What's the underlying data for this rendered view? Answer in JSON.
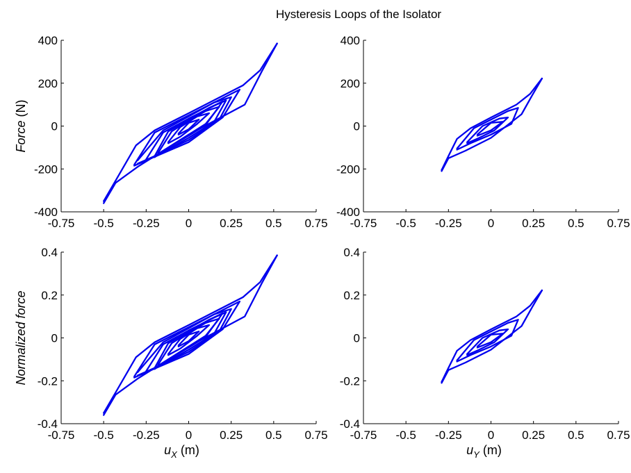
{
  "figure": {
    "title": "Hysteresis Loops of the Isolator"
  },
  "chart_data": [
    {
      "type": "line",
      "panel": "top-left",
      "title": "",
      "xlabel": "",
      "ylabel": {
        "italic": "Force",
        "normal": " (N)"
      },
      "xlim": [
        -0.75,
        0.75
      ],
      "ylim": [
        -400,
        400
      ],
      "xticks": [
        "-0.75",
        "-0.5",
        "-0.25",
        "0",
        "0.25",
        "0.5",
        "0.75"
      ],
      "yticks": [
        "-400",
        "-200",
        "0",
        "200",
        "400"
      ],
      "color": "#0000ee",
      "series": [
        {
          "x": [
            -0.5,
            -0.43,
            -0.3,
            0.0,
            0.33,
            0.43,
            0.52
          ],
          "y": [
            -360,
            -265,
            -190,
            -40,
            100,
            255,
            385
          ]
        },
        {
          "x": [
            0.52,
            0.42,
            0.32,
            0.0,
            -0.2,
            -0.31,
            -0.43,
            -0.5
          ],
          "y": [
            385,
            260,
            190,
            60,
            -20,
            -90,
            -255,
            -350
          ]
        },
        {
          "x": [
            -0.32,
            -0.22,
            0.0,
            0.2,
            0.3,
            0.2,
            0.0,
            -0.2,
            -0.32
          ],
          "y": [
            -185,
            -150,
            -75,
            40,
            170,
            130,
            50,
            -30,
            -180
          ]
        },
        {
          "x": [
            -0.25,
            -0.15,
            0.0,
            0.15,
            0.22,
            0.15,
            0.0,
            -0.15,
            -0.25
          ],
          "y": [
            -160,
            -120,
            -55,
            20,
            120,
            95,
            35,
            -30,
            -155
          ]
        },
        {
          "x": [
            -0.18,
            -0.1,
            0.0,
            0.1,
            0.18,
            0.1,
            0.0,
            -0.1,
            -0.18
          ],
          "y": [
            -130,
            -90,
            -40,
            10,
            90,
            70,
            25,
            -25,
            -125
          ]
        },
        {
          "x": [
            -0.12,
            -0.05,
            0.05,
            0.12,
            0.05,
            -0.05,
            -0.12
          ],
          "y": [
            -80,
            -50,
            10,
            60,
            45,
            -5,
            -75
          ]
        },
        {
          "x": [
            -0.06,
            0.0,
            0.06,
            0.0,
            -0.06
          ],
          "y": [
            -40,
            -15,
            30,
            15,
            -35
          ]
        },
        {
          "x": [
            -0.3,
            -0.2,
            0.0,
            0.18,
            0.25,
            0.15,
            0.0,
            -0.15,
            -0.3
          ],
          "y": [
            -175,
            -140,
            -65,
            30,
            135,
            110,
            45,
            -20,
            -160
          ]
        },
        {
          "x": [
            -0.2,
            -0.12,
            0.0,
            0.1,
            0.2,
            0.12,
            0.0,
            -0.12,
            -0.2
          ],
          "y": [
            -145,
            -100,
            -45,
            5,
            115,
            85,
            30,
            -25,
            -140
          ]
        }
      ]
    },
    {
      "type": "line",
      "panel": "top-right",
      "title": "",
      "xlabel": "",
      "ylabel": "",
      "xlim": [
        -0.75,
        0.75
      ],
      "ylim": [
        -400,
        400
      ],
      "xticks": [
        "-0.75",
        "-0.5",
        "-0.25",
        "0",
        "0.25",
        "0.5",
        "0.75"
      ],
      "yticks": [
        "-400",
        "-200",
        "0",
        "200",
        "400"
      ],
      "color": "#0000ee",
      "series": [
        {
          "x": [
            -0.29,
            -0.25,
            -0.15,
            0.0,
            0.18,
            0.24,
            0.3
          ],
          "y": [
            -210,
            -150,
            -115,
            -55,
            55,
            140,
            222
          ]
        },
        {
          "x": [
            0.3,
            0.23,
            0.15,
            0.0,
            -0.12,
            -0.2,
            -0.25,
            -0.29
          ],
          "y": [
            222,
            150,
            100,
            40,
            -10,
            -60,
            -140,
            -205
          ]
        },
        {
          "x": [
            -0.2,
            -0.12,
            0.0,
            0.12,
            0.16,
            0.1,
            0.0,
            -0.1,
            -0.2
          ],
          "y": [
            -110,
            -80,
            -40,
            10,
            85,
            70,
            30,
            -10,
            -105
          ]
        },
        {
          "x": [
            -0.14,
            -0.07,
            0.02,
            0.1,
            0.05,
            -0.05,
            -0.14
          ],
          "y": [
            -80,
            -55,
            -20,
            40,
            35,
            0,
            -75
          ]
        },
        {
          "x": [
            -0.08,
            0.0,
            0.07,
            0.0,
            -0.08
          ],
          "y": [
            -45,
            -20,
            20,
            15,
            -40
          ]
        }
      ]
    },
    {
      "type": "line",
      "panel": "bottom-left",
      "title": "",
      "xlabel": {
        "main": "u",
        "sub": "X",
        "unit": " (m)"
      },
      "ylabel": {
        "italic": "Normalized force",
        "normal": ""
      },
      "xlim": [
        -0.75,
        0.75
      ],
      "ylim": [
        -0.4,
        0.4
      ],
      "xticks": [
        "-0.75",
        "-0.5",
        "-0.25",
        "0",
        "0.25",
        "0.5",
        "0.75"
      ],
      "yticks": [
        "-0.4",
        "-0.2",
        "0",
        "0.2",
        "0.4"
      ],
      "color": "#0000ee",
      "series": [
        {
          "x": [
            -0.5,
            -0.43,
            -0.3,
            0.0,
            0.33,
            0.43,
            0.52
          ],
          "y": [
            -0.36,
            -0.265,
            -0.19,
            -0.04,
            0.1,
            0.255,
            0.385
          ]
        },
        {
          "x": [
            0.52,
            0.42,
            0.32,
            0.0,
            -0.2,
            -0.31,
            -0.43,
            -0.5
          ],
          "y": [
            0.385,
            0.26,
            0.19,
            0.06,
            -0.02,
            -0.09,
            -0.255,
            -0.35
          ]
        },
        {
          "x": [
            -0.32,
            -0.22,
            0.0,
            0.2,
            0.3,
            0.2,
            0.0,
            -0.2,
            -0.32
          ],
          "y": [
            -0.185,
            -0.15,
            -0.075,
            0.04,
            0.17,
            0.13,
            0.05,
            -0.03,
            -0.18
          ]
        },
        {
          "x": [
            -0.25,
            -0.15,
            0.0,
            0.15,
            0.22,
            0.15,
            0.0,
            -0.15,
            -0.25
          ],
          "y": [
            -0.16,
            -0.12,
            -0.055,
            0.02,
            0.12,
            0.095,
            0.035,
            -0.03,
            -0.155
          ]
        },
        {
          "x": [
            -0.18,
            -0.1,
            0.0,
            0.1,
            0.18,
            0.1,
            0.0,
            -0.1,
            -0.18
          ],
          "y": [
            -0.13,
            -0.09,
            -0.04,
            0.01,
            0.09,
            0.07,
            0.025,
            -0.025,
            -0.125
          ]
        },
        {
          "x": [
            -0.12,
            -0.05,
            0.05,
            0.12,
            0.05,
            -0.05,
            -0.12
          ],
          "y": [
            -0.08,
            -0.05,
            0.01,
            0.06,
            0.045,
            -0.005,
            -0.075
          ]
        },
        {
          "x": [
            -0.06,
            0.0,
            0.06,
            0.0,
            -0.06
          ],
          "y": [
            -0.04,
            -0.015,
            0.03,
            0.015,
            -0.035
          ]
        },
        {
          "x": [
            -0.3,
            -0.2,
            0.0,
            0.18,
            0.25,
            0.15,
            0.0,
            -0.15,
            -0.3
          ],
          "y": [
            -0.175,
            -0.14,
            -0.065,
            0.03,
            0.135,
            0.11,
            0.045,
            -0.02,
            -0.16
          ]
        },
        {
          "x": [
            -0.2,
            -0.12,
            0.0,
            0.1,
            0.2,
            0.12,
            0.0,
            -0.12,
            -0.2
          ],
          "y": [
            -0.145,
            -0.1,
            -0.045,
            0.005,
            0.115,
            0.085,
            0.03,
            -0.025,
            -0.14
          ]
        }
      ]
    },
    {
      "type": "line",
      "panel": "bottom-right",
      "title": "",
      "xlabel": {
        "main": "u",
        "sub": "Y",
        "unit": " (m)"
      },
      "ylabel": "",
      "xlim": [
        -0.75,
        0.75
      ],
      "ylim": [
        -0.4,
        0.4
      ],
      "xticks": [
        "-0.75",
        "-0.5",
        "-0.25",
        "0",
        "0.25",
        "0.5",
        "0.75"
      ],
      "yticks": [
        "-0.4",
        "-0.2",
        "0",
        "0.2",
        "0.4"
      ],
      "color": "#0000ee",
      "series": [
        {
          "x": [
            -0.29,
            -0.25,
            -0.15,
            0.0,
            0.18,
            0.24,
            0.3
          ],
          "y": [
            -0.21,
            -0.15,
            -0.115,
            -0.055,
            0.055,
            0.14,
            0.222
          ]
        },
        {
          "x": [
            0.3,
            0.23,
            0.15,
            0.0,
            -0.12,
            -0.2,
            -0.25,
            -0.29
          ],
          "y": [
            0.222,
            0.15,
            0.1,
            0.04,
            -0.01,
            -0.06,
            -0.14,
            -0.205
          ]
        },
        {
          "x": [
            -0.2,
            -0.12,
            0.0,
            0.12,
            0.16,
            0.1,
            0.0,
            -0.1,
            -0.2
          ],
          "y": [
            -0.11,
            -0.08,
            -0.04,
            0.01,
            0.085,
            0.07,
            0.03,
            -0.01,
            -0.105
          ]
        },
        {
          "x": [
            -0.14,
            -0.07,
            0.02,
            0.1,
            0.05,
            -0.05,
            -0.14
          ],
          "y": [
            -0.08,
            -0.055,
            -0.02,
            0.04,
            0.035,
            0.0,
            -0.075
          ]
        },
        {
          "x": [
            -0.08,
            0.0,
            0.07,
            0.0,
            -0.08
          ],
          "y": [
            -0.045,
            -0.02,
            0.02,
            0.015,
            -0.04
          ]
        }
      ]
    }
  ]
}
